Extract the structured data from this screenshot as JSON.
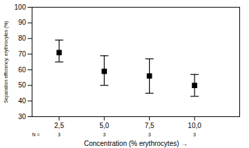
{
  "chart_data": {
    "type": "errorbar",
    "xlabel": "Concentration (% erythrocytes)",
    "ylabel": "Separation efficiency, erythrocytes (%)",
    "x": [
      2.5,
      5.0,
      7.5,
      10.0
    ],
    "values": [
      71,
      59,
      56,
      50
    ],
    "yerr_lower": [
      65,
      50,
      45,
      43
    ],
    "yerr_upper": [
      79,
      69,
      67,
      57
    ],
    "sample_sizes": [
      3,
      3,
      3,
      3
    ],
    "annotations": [
      "N ="
    ],
    "xlim": [
      1.0,
      12.5
    ],
    "xticks": [
      {
        "value": 2.5,
        "label": "2,5"
      },
      {
        "value": 5.0,
        "label": "5,0"
      },
      {
        "value": 7.5,
        "label": "7,5"
      },
      {
        "value": 10.0,
        "label": "10,0"
      }
    ],
    "ylim": [
      30,
      100
    ],
    "yticks": [
      30,
      40,
      50,
      60,
      70,
      80,
      90,
      100
    ],
    "color": "#000000",
    "marker": "square",
    "grid": false
  }
}
